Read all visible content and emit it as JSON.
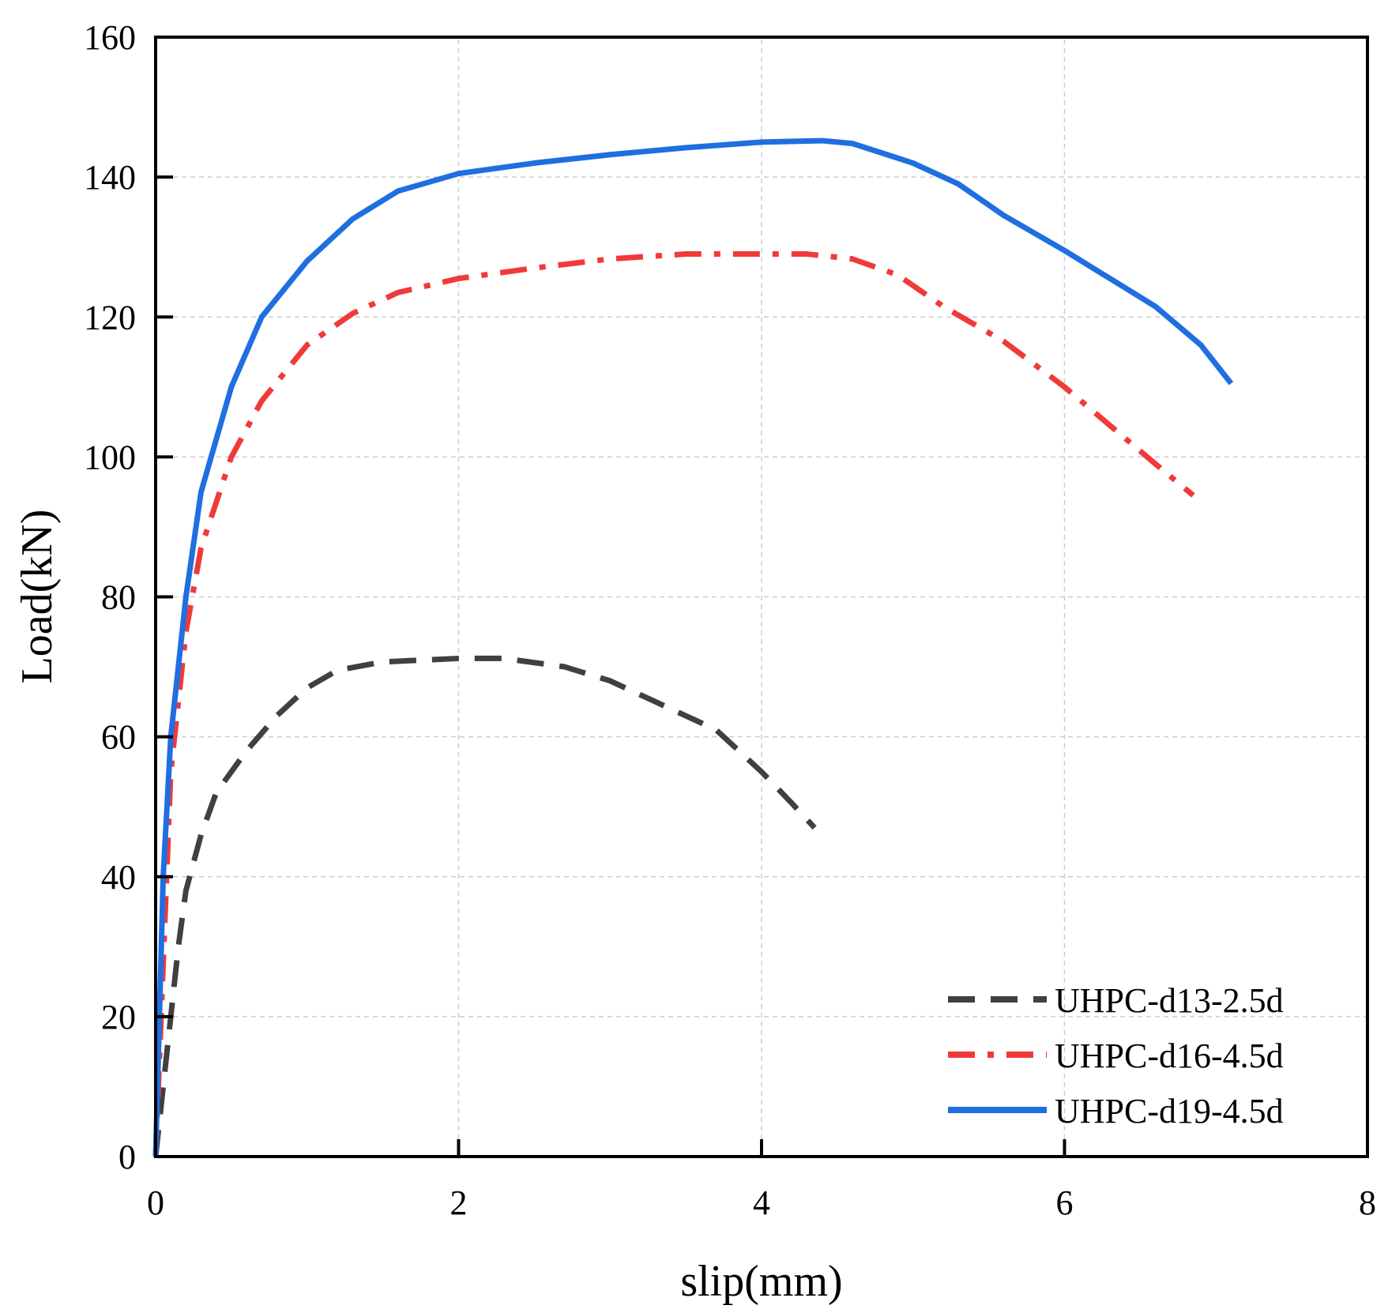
{
  "chart_data": {
    "type": "line",
    "title": "",
    "xlabel": "slip(mm)",
    "ylabel": "Load(kN)",
    "xlim": [
      0,
      8
    ],
    "ylim": [
      0,
      160
    ],
    "xticks": [
      0,
      2,
      4,
      6,
      8
    ],
    "yticks": [
      0,
      20,
      40,
      60,
      80,
      100,
      120,
      140,
      160
    ],
    "grid": true,
    "legend_position": "bottom-right",
    "series": [
      {
        "name": "UHPC-d13-2.5d",
        "color": "#404040",
        "dash": "dashed",
        "x": [
          0,
          0.05,
          0.1,
          0.15,
          0.2,
          0.3,
          0.4,
          0.6,
          0.8,
          1,
          1.2,
          1.5,
          2,
          2.3,
          2.7,
          3,
          3.3,
          3.7,
          4,
          4.2,
          4.35
        ],
        "y": [
          0,
          10,
          20,
          30,
          38,
          46,
          52,
          58,
          63,
          67,
          69.5,
          70.7,
          71.2,
          71.2,
          70,
          68,
          65,
          61,
          55,
          50.5,
          47
        ]
      },
      {
        "name": "UHPC-d16-4.5d",
        "color": "#f03a3a",
        "dash": "dash-dot",
        "x": [
          0,
          0.1,
          0.2,
          0.3,
          0.5,
          0.7,
          1,
          1.3,
          1.6,
          2,
          2.5,
          3,
          3.5,
          4,
          4.3,
          4.6,
          4.9,
          5.2,
          5.6,
          6,
          6.3,
          6.6,
          6.85
        ],
        "y": [
          0,
          55,
          75,
          87,
          100,
          108,
          116,
          120.5,
          123.5,
          125.5,
          127,
          128.3,
          129,
          129,
          129,
          128.3,
          126,
          121.5,
          116.5,
          110,
          104.5,
          99,
          94.5
        ]
      },
      {
        "name": "UHPC-d19-4.5d",
        "color": "#1f6fe0",
        "dash": "solid",
        "x": [
          0,
          0.05,
          0.1,
          0.2,
          0.3,
          0.5,
          0.7,
          1,
          1.3,
          1.6,
          2,
          2.5,
          3,
          3.5,
          4,
          4.4,
          4.6,
          5,
          5.3,
          5.6,
          6,
          6.3,
          6.6,
          6.9,
          7.1
        ],
        "y": [
          0,
          40,
          60,
          80,
          95,
          110,
          120,
          128,
          134,
          138,
          140.5,
          142,
          143.2,
          144.2,
          145,
          145.2,
          144.8,
          142,
          139,
          134.5,
          129.5,
          125.5,
          121.5,
          116,
          110.5
        ]
      }
    ]
  }
}
